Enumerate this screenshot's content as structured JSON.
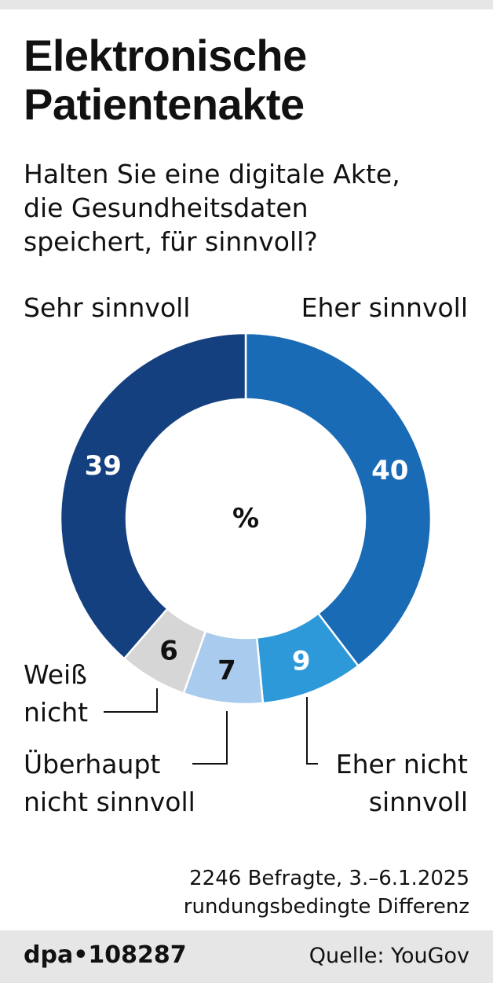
{
  "title": [
    "Elektronische",
    "Patientenakte"
  ],
  "subtitle": [
    "Halten Sie eine digitale Akte,",
    "die Gesundheitsdaten",
    "speichert, für sinnvoll?"
  ],
  "chart_data": {
    "type": "pie",
    "variant": "donut",
    "center_label": "%",
    "slices": [
      {
        "label": "Eher sinnvoll",
        "value": 40,
        "color": "#1a6bb5",
        "text_color": "#ffffff"
      },
      {
        "label": "Eher nicht sinnvoll",
        "value": 9,
        "color": "#2d99d9",
        "text_color": "#ffffff"
      },
      {
        "label": "Überhaupt nicht sinnvoll",
        "value": 7,
        "color": "#a9cbed",
        "text_color": "#111111"
      },
      {
        "label": "Weiß nicht",
        "value": 6,
        "color": "#d6d6d6",
        "text_color": "#111111"
      },
      {
        "label": "Sehr sinnvoll",
        "value": 39,
        "color": "#15407f",
        "text_color": "#ffffff"
      }
    ],
    "category_labels": {
      "sehr_sinnvoll": "Sehr sinnvoll",
      "eher_sinnvoll": "Eher sinnvoll",
      "weiss_nicht": [
        "Weiß",
        "nicht"
      ],
      "ueberhaupt_nicht": [
        "Überhaupt",
        "nicht sinnvoll"
      ],
      "eher_nicht": [
        "Eher nicht",
        "sinnvoll"
      ]
    }
  },
  "notes": [
    "2246 Befragte, 3.–6.1.2025",
    "rundungsbedingte Differenz"
  ],
  "footer": {
    "logo": "dpa•108287",
    "source": "Quelle: YouGov"
  }
}
